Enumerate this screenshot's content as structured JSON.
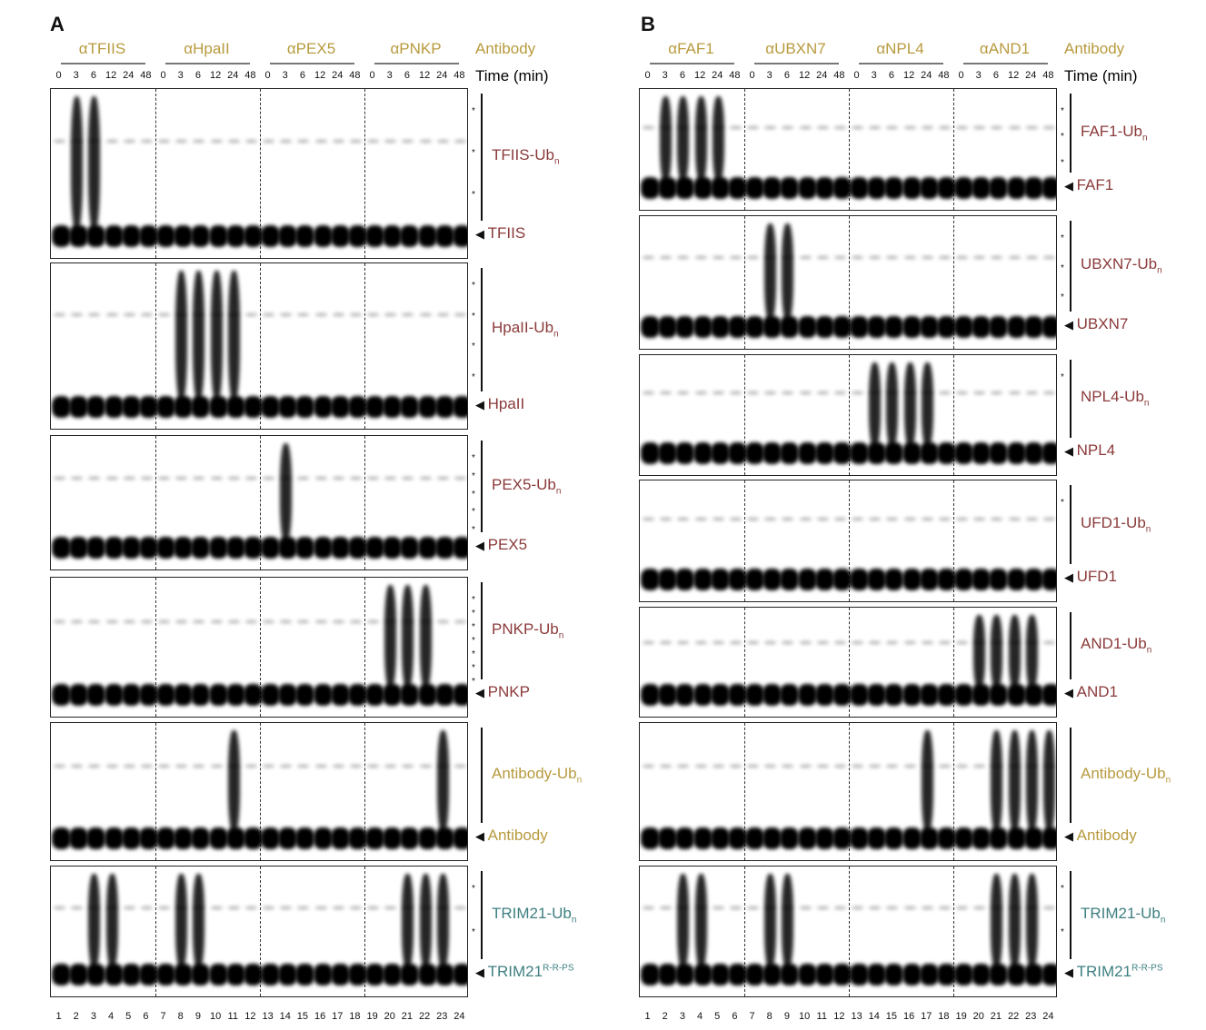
{
  "colors": {
    "antibody": "#b89a3e",
    "substrate": "#8b3a3a",
    "trim21": "#3f7f80"
  },
  "time_header": "Time (min)",
  "antibody_header": "Antibody",
  "timepoints": [
    "0",
    "3",
    "6",
    "12",
    "24",
    "48"
  ],
  "lanes": [
    "1",
    "2",
    "3",
    "4",
    "5",
    "6",
    "7",
    "8",
    "9",
    "10",
    "11",
    "12",
    "13",
    "14",
    "15",
    "16",
    "17",
    "18",
    "19",
    "20",
    "21",
    "22",
    "23",
    "24"
  ],
  "panels": [
    {
      "letter": "A",
      "antibodies": [
        "αTFIIS",
        "αHpaII",
        "αPEX5",
        "αPNKP"
      ],
      "blots": [
        {
          "ub_label": "TFIIS-Ub",
          "ub_sub": "n",
          "main_label": "TFIIS",
          "color": "substrate",
          "asterisks": [
            "*",
            "*",
            "*"
          ],
          "smear_lanes": [
            2,
            3
          ]
        },
        {
          "ub_label": "HpaII-Ub",
          "ub_sub": "n",
          "main_label": "HpaII",
          "color": "substrate",
          "asterisks": [
            "*",
            "*",
            "*",
            "*"
          ],
          "smear_lanes": [
            8,
            9,
            10,
            11
          ]
        },
        {
          "ub_label": "PEX5-Ub",
          "ub_sub": "n",
          "main_label": "PEX5",
          "color": "substrate",
          "asterisks": [
            "*",
            "*",
            "*",
            "*",
            "*"
          ],
          "smear_lanes": [
            14
          ]
        },
        {
          "ub_label": "PNKP-Ub",
          "ub_sub": "n",
          "main_label": "PNKP",
          "color": "substrate",
          "asterisks": [
            "*",
            "*",
            "*",
            "*",
            "*",
            "*",
            "*"
          ],
          "smear_lanes": [
            20,
            21,
            22
          ]
        },
        {
          "ub_label": "Antibody-Ub",
          "ub_sub": "n",
          "main_label": "Antibody",
          "color": "antibody",
          "asterisks": [],
          "smear_lanes": [
            11,
            23
          ]
        },
        {
          "ub_label": "TRIM21-Ub",
          "ub_sub": "n",
          "main_label": "TRIM21",
          "main_sup": "R-R-PS",
          "color": "trim21",
          "asterisks": [
            "*",
            "*"
          ],
          "smear_lanes": [
            3,
            4,
            8,
            9,
            21,
            22,
            23
          ]
        }
      ]
    },
    {
      "letter": "B",
      "antibodies": [
        "αFAF1",
        "αUBXN7",
        "αNPL4",
        "αAND1"
      ],
      "blots": [
        {
          "ub_label": "FAF1-Ub",
          "ub_sub": "n",
          "main_label": "FAF1",
          "color": "substrate",
          "asterisks": [
            "*",
            "*",
            "*"
          ],
          "smear_lanes": [
            2,
            3,
            4,
            5
          ]
        },
        {
          "ub_label": "UBXN7-Ub",
          "ub_sub": "n",
          "main_label": "UBXN7",
          "color": "substrate",
          "asterisks": [
            "*",
            "*",
            "*"
          ],
          "smear_lanes": [
            8,
            9
          ]
        },
        {
          "ub_label": "NPL4-Ub",
          "ub_sub": "n",
          "main_label": "NPL4",
          "color": "substrate",
          "asterisks": [
            "*"
          ],
          "smear_lanes": [
            14,
            15,
            16,
            17
          ]
        },
        {
          "ub_label": "UFD1-Ub",
          "ub_sub": "n",
          "main_label": "UFD1",
          "color": "substrate",
          "asterisks": [
            "*"
          ],
          "smear_lanes": []
        },
        {
          "ub_label": "AND1-Ub",
          "ub_sub": "n",
          "main_label": "AND1",
          "color": "substrate",
          "asterisks": [],
          "smear_lanes": [
            20,
            21,
            22,
            23
          ]
        },
        {
          "ub_label": "Antibody-Ub",
          "ub_sub": "n",
          "main_label": "Antibody",
          "color": "antibody",
          "asterisks": [],
          "smear_lanes": [
            17,
            21,
            22,
            23,
            24
          ]
        },
        {
          "ub_label": "TRIM21-Ub",
          "ub_sub": "n",
          "main_label": "TRIM21",
          "main_sup": "R-R-PS",
          "color": "trim21",
          "asterisks": [
            "*",
            "*"
          ],
          "smear_lanes": [
            3,
            4,
            8,
            9,
            21,
            22,
            23
          ]
        }
      ]
    }
  ]
}
